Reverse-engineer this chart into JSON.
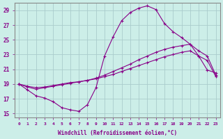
{
  "xlabel": "Windchill (Refroidissement éolien,°C)",
  "background_color": "#cceee8",
  "grid_color": "#aacccc",
  "line_color": "#880088",
  "xlim": [
    -0.5,
    23.5
  ],
  "ylim": [
    14.5,
    30.0
  ],
  "yticks": [
    15,
    17,
    19,
    21,
    23,
    25,
    27,
    29
  ],
  "xticks": [
    0,
    1,
    2,
    3,
    4,
    5,
    6,
    7,
    8,
    9,
    10,
    11,
    12,
    13,
    14,
    15,
    16,
    17,
    18,
    19,
    20,
    21,
    22,
    23
  ],
  "s1_x": [
    0,
    1,
    2,
    3,
    4,
    5,
    6,
    7,
    8,
    9,
    10,
    11,
    12,
    13,
    14,
    15,
    16,
    17,
    18,
    19,
    20,
    21,
    22,
    23
  ],
  "s1_y": [
    19.0,
    18.2,
    17.4,
    17.1,
    16.6,
    15.8,
    15.5,
    15.3,
    16.2,
    18.5,
    22.8,
    25.4,
    27.6,
    28.7,
    29.3,
    29.6,
    29.1,
    27.2,
    26.1,
    25.3,
    24.4,
    22.8,
    20.9,
    20.5
  ],
  "s2_x": [
    0,
    1,
    2,
    3,
    4,
    5,
    6,
    7,
    8,
    9,
    10,
    11,
    12,
    13,
    14,
    15,
    16,
    17,
    18,
    19,
    20,
    21,
    22,
    23
  ],
  "s2_y": [
    19.0,
    18.6,
    18.3,
    18.5,
    18.7,
    18.9,
    19.1,
    19.3,
    19.5,
    19.8,
    20.2,
    20.7,
    21.2,
    21.7,
    22.3,
    22.8,
    23.3,
    23.7,
    24.0,
    24.2,
    24.4,
    23.5,
    22.8,
    20.2
  ],
  "s3_x": [
    0,
    1,
    2,
    3,
    4,
    5,
    6,
    7,
    8,
    9,
    10,
    11,
    12,
    13,
    14,
    15,
    16,
    17,
    18,
    19,
    20,
    21,
    22,
    23
  ],
  "s3_y": [
    19.0,
    18.7,
    18.5,
    18.6,
    18.8,
    19.0,
    19.2,
    19.3,
    19.5,
    19.7,
    20.0,
    20.3,
    20.7,
    21.1,
    21.5,
    21.9,
    22.3,
    22.7,
    23.0,
    23.3,
    23.5,
    22.8,
    22.2,
    20.0
  ]
}
